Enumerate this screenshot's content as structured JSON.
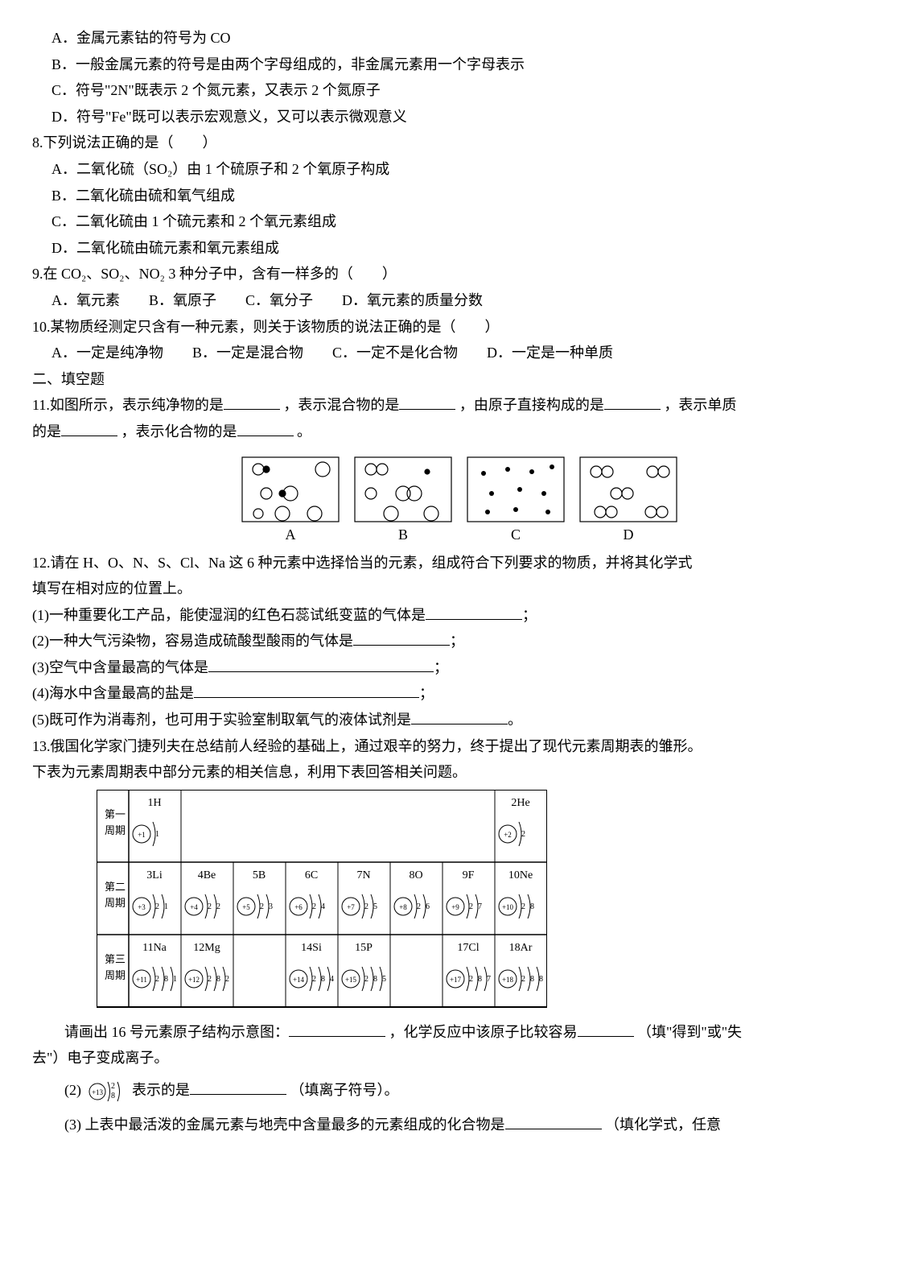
{
  "q7": {
    "optA": "A．金属元素钴的符号为 CO",
    "optB": "B．一般金属元素的符号是由两个字母组成的，非金属元素用一个字母表示",
    "optC": "C．符号\"2N\"既表示 2 个氮元素，又表示 2 个氮原子",
    "optD": "D．符号\"Fe\"既可以表示宏观意义，又可以表示微观意义"
  },
  "q8": {
    "stem": "8.下列说法正确的是（　　）",
    "optA": "A．二氧化硫（SO₂）由 1 个硫原子和 2 个氧原子构成",
    "optB": "B．二氧化硫由硫和氧气组成",
    "optC": "C．二氧化硫由 1 个硫元素和 2 个氧元素组成",
    "optD": "D．二氧化硫由硫元素和氧元素组成"
  },
  "q9": {
    "stem": "9.在 CO₂、SO₂、NO₂ 3 种分子中，含有一样多的（　　）",
    "opts": "A．氧元素　　B．氧原子　　C．氧分子　　D．氧元素的质量分数"
  },
  "q10": {
    "stem": "10.某物质经测定只含有一种元素，则关于该物质的说法正确的是（　　）",
    "opts": "A．一定是纯净物　　B．一定是混合物　　C．一定不是化合物　　D．一定是一种单质"
  },
  "section2": "二、填空题",
  "q11": {
    "p1a": "11.如图所示，表示纯净物的是",
    "p1b": "，表示混合物的是",
    "p1c": "，由原子直接构成的是",
    "p1d": "，表示单质",
    "p2a": "的是",
    "p2b": "，表示化合物的是",
    "p2c": "。",
    "labels": {
      "a": "A",
      "b": "B",
      "c": "C",
      "d": "D"
    }
  },
  "q12": {
    "stem1": "12.请在 H、O、N、S、Cl、Na 这 6 种元素中选择恰当的元素，组成符合下列要求的物质，并将其化学式",
    "stem2": "填写在相对应的位置上。",
    "l1a": "(1)一种重要化工产品，能使湿润的红色石蕊试纸变蓝的气体是",
    "l1b": "；",
    "l2a": "(2)一种大气污染物，容易造成硫酸型酸雨的气体是",
    "l2b": "；",
    "l3a": "(3)空气中含量最高的气体是",
    "l3b": "；",
    "l4a": "(4)海水中含量最高的盐是",
    "l4b": "；",
    "l5a": "(5)既可作为消毒剂，也可用于实验室制取氧气的液体试剂是",
    "l5b": "。"
  },
  "q13": {
    "stem1": "13.俄国化学家门捷列夫在总结前人经验的基础上，通过艰辛的努力，终于提出了现代元素周期表的雏形。",
    "stem2": "下表为元素周期表中部分元素的相关信息，利用下表回答相关问题。",
    "sub1a": "请画出 16 号元素原子结构示意图：",
    "sub1b": "，化学反应中该原子比较容易",
    "sub1c": "（填\"得到\"或\"失",
    "sub1d": "去\"）电子变成离子。",
    "sub2a": "(2)",
    "sub2b": "表示的是",
    "sub2c": "（填离子符号）。",
    "sub3a": "(3) 上表中最活泼的金属元素与地壳中含量最多的元素组成的化合物是",
    "sub3b": "（填化学式，任意"
  },
  "pt": {
    "row1_label": "第一周期",
    "row2_label": "第二周期",
    "row3_label": "第三周期",
    "c1_1": "1H",
    "c1_8": "2He",
    "c2_1": "3Li",
    "c2_2": "4Be",
    "c2_3": "5B",
    "c2_4": "6C",
    "c2_5": "7N",
    "c2_6": "8O",
    "c2_7": "9F",
    "c2_8": "10Ne",
    "c3_1": "11Na",
    "c3_2": "12Mg",
    "c3_4": "14Si",
    "c3_5": "15P",
    "c3_7": "17Cl",
    "c3_8": "18Ar",
    "e1_1": "+1",
    "s1_1": "1",
    "e1_8": "+2",
    "s1_8": "2",
    "e2_1": "+3",
    "s2_1": "2 1",
    "e2_2": "+4",
    "s2_2": "2 2",
    "e2_3": "+5",
    "s2_3": "2 3",
    "e2_4": "+6",
    "s2_4": "2 4",
    "e2_5": "+7",
    "s2_5": "2 5",
    "e2_6": "+8",
    "s2_6": "2 6",
    "e2_7": "+9",
    "s2_7": "2 7",
    "e2_8": "+10",
    "s2_8": "2 8",
    "e3_1": "+11",
    "s3_1": "2 8 1",
    "e3_2": "+12",
    "s3_2": "2 8 2",
    "e3_4": "+14",
    "s3_4": "2 8 4",
    "e3_5": "+15",
    "s3_5": "2 8 5",
    "e3_7": "+17",
    "s3_7": "2 8 7",
    "e3_8": "+18",
    "s3_8": "2 8 8",
    "sub2_core": "+13",
    "sub2_sh": "2 8"
  },
  "colors": {
    "text": "#000000",
    "border": "#000000",
    "bg": "#ffffff"
  }
}
